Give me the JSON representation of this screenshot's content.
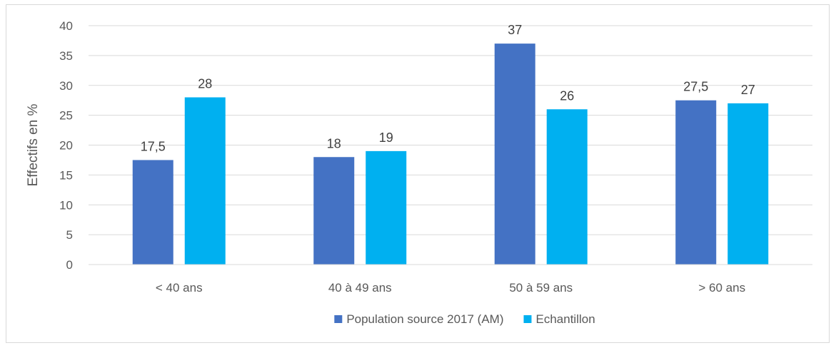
{
  "chart_data": {
    "type": "bar",
    "title": "",
    "xlabel": "",
    "ylabel": "Effectifs en %",
    "ylim": [
      0,
      40
    ],
    "yticks": [
      0,
      5,
      10,
      15,
      20,
      25,
      30,
      35,
      40
    ],
    "grid": true,
    "legend_position": "bottom",
    "categories": [
      "< 40 ans",
      "40 à 49 ans",
      "50 à 59 ans",
      "> 60 ans"
    ],
    "series": [
      {
        "name": "Population source 2017 (AM)",
        "color": "#4472c4",
        "values": [
          17.5,
          18,
          37,
          27.5
        ],
        "labels": [
          "17,5",
          "18",
          "37",
          "27,5"
        ]
      },
      {
        "name": "Echantillon",
        "color": "#00b0f0",
        "values": [
          28,
          19,
          26,
          27
        ],
        "labels": [
          "28",
          "19",
          "26",
          "27"
        ]
      }
    ]
  }
}
